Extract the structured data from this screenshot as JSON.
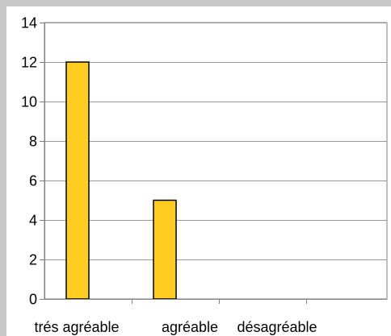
{
  "chart_data": {
    "type": "bar",
    "title": "",
    "xlabel": "",
    "ylabel": "",
    "categories": [
      "trés agréable",
      "agréable",
      "désagréable",
      ""
    ],
    "values": [
      12,
      5,
      0,
      0
    ],
    "ylim": [
      0,
      14
    ],
    "yticks": [
      0,
      2,
      4,
      6,
      8,
      10,
      12,
      14
    ],
    "grid": true,
    "legend": "none",
    "colors": {
      "bar_fill": "#ffcc22",
      "bar_stroke": "#000000",
      "grid": "#999999",
      "axis": "#808080",
      "plot_border": "#808080",
      "background": "#ffffff",
      "frame": "#c8c8c8"
    }
  }
}
